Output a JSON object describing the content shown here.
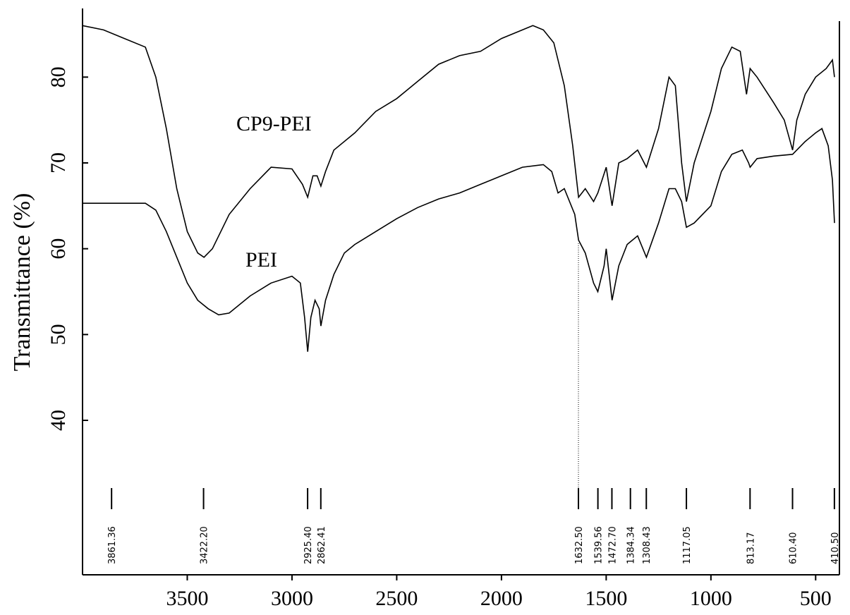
{
  "chart_data": {
    "type": "line",
    "y_label": "Transmittance (%)",
    "xlim": [
      4000,
      400
    ],
    "ylim": [
      22,
      88
    ],
    "xticks": [
      3500,
      3000,
      2500,
      2000,
      1500,
      1000,
      500
    ],
    "yticks": [
      40,
      50,
      60,
      70,
      80
    ],
    "grid": false,
    "series": [
      {
        "name": "CP9-PEI",
        "color": "#000000",
        "x": [
          4000,
          3900,
          3800,
          3700,
          3650,
          3600,
          3550,
          3500,
          3450,
          3420,
          3380,
          3300,
          3200,
          3100,
          3000,
          2950,
          2925,
          2900,
          2880,
          2862,
          2840,
          2800,
          2700,
          2600,
          2500,
          2400,
          2300,
          2200,
          2100,
          2000,
          1900,
          1850,
          1800,
          1750,
          1700,
          1660,
          1632,
          1600,
          1560,
          1540,
          1500,
          1472,
          1440,
          1400,
          1350,
          1308,
          1250,
          1200,
          1170,
          1140,
          1117,
          1080,
          1000,
          950,
          900,
          860,
          830,
          813,
          780,
          700,
          650,
          610,
          590,
          550,
          500,
          450,
          420,
          410
        ],
        "values": [
          86,
          85.5,
          84.5,
          83.5,
          80,
          74,
          67,
          62,
          59.5,
          59,
          60,
          64,
          67,
          69.5,
          69.3,
          67.5,
          66,
          68.5,
          68.5,
          67.3,
          69,
          71.5,
          73.5,
          76,
          77.5,
          79.5,
          81.5,
          82.5,
          83,
          84.5,
          85.5,
          86,
          85.5,
          84,
          79,
          72,
          66,
          67,
          65.5,
          66.5,
          69.5,
          65,
          70,
          70.5,
          71.5,
          69.5,
          74,
          80,
          79,
          70,
          65.5,
          70,
          76,
          81,
          83.5,
          83,
          78,
          81,
          80,
          77,
          75,
          71.5,
          75,
          78,
          80,
          81,
          82,
          80
        ]
      },
      {
        "name": "PEI",
        "color": "#000000",
        "x": [
          4000,
          3700,
          3650,
          3600,
          3500,
          3450,
          3400,
          3350,
          3300,
          3200,
          3100,
          3000,
          2960,
          2940,
          2925,
          2910,
          2890,
          2870,
          2862,
          2840,
          2800,
          2750,
          2700,
          2600,
          2500,
          2400,
          2300,
          2200,
          2100,
          2000,
          1900,
          1800,
          1760,
          1730,
          1700,
          1650,
          1632,
          1600,
          1560,
          1540,
          1510,
          1500,
          1472,
          1440,
          1400,
          1350,
          1308,
          1250,
          1200,
          1170,
          1140,
          1117,
          1080,
          1000,
          950,
          900,
          850,
          820,
          813,
          780,
          700,
          610,
          550,
          500,
          470,
          440,
          420,
          410
        ],
        "values": [
          65.3,
          65.3,
          64.5,
          62,
          56,
          54,
          53,
          52.3,
          52.5,
          54.5,
          56,
          56.8,
          56,
          52,
          48,
          52,
          54,
          53,
          51,
          54,
          57,
          59.5,
          60.5,
          62,
          63.5,
          64.8,
          65.8,
          66.5,
          67.5,
          68.5,
          69.5,
          69.8,
          69,
          66.5,
          67,
          64,
          61,
          59.5,
          56,
          55,
          58,
          60,
          54,
          58,
          60.5,
          61.5,
          59,
          63,
          67,
          67,
          65.5,
          62.5,
          63,
          65,
          69,
          71,
          71.5,
          70,
          69.5,
          70.5,
          70.8,
          71,
          72.5,
          73.5,
          74,
          72,
          68,
          63
        ]
      }
    ],
    "peaks": [
      {
        "value": 3861.36,
        "label": "3861.36"
      },
      {
        "value": 3422.2,
        "label": "3422.20"
      },
      {
        "value": 2925.4,
        "label": "2925.40"
      },
      {
        "value": 2862.41,
        "label": "2862.41"
      },
      {
        "value": 1632.5,
        "label": "1632.50"
      },
      {
        "value": 1539.56,
        "label": "1539.56"
      },
      {
        "value": 1472.7,
        "label": "1472.70"
      },
      {
        "value": 1384.34,
        "label": "1384.34"
      },
      {
        "value": 1308.43,
        "label": "1308.43"
      },
      {
        "value": 1117.05,
        "label": "1117.05"
      },
      {
        "value": 813.17,
        "label": "813.17"
      },
      {
        "value": 610.4,
        "label": "610.40"
      },
      {
        "value": 410.5,
        "label": "410.50"
      }
    ]
  }
}
